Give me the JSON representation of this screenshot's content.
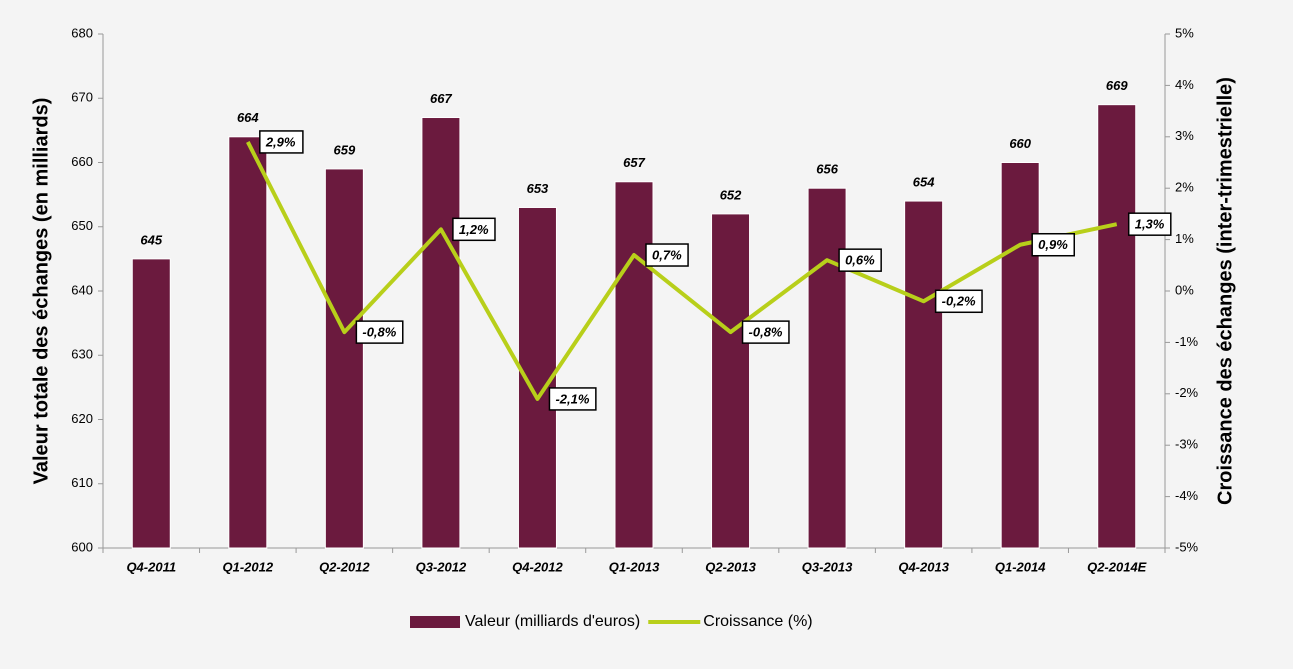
{
  "chart_data": {
    "type": "bar-line",
    "y_label": "Valeur totale des échanges (en milliards)",
    "y2_label": "Croissance des échanges (inter-trimestrielle)",
    "categories": [
      "Q4-2011",
      "Q1-2012",
      "Q2-2012",
      "Q3-2012",
      "Q4-2012",
      "Q1-2013",
      "Q2-2013",
      "Q3-2013",
      "Q4-2013",
      "Q1-2014",
      "Q2-2014E"
    ],
    "series": [
      {
        "name": "Valeur (milliards d'euros)",
        "type": "bar",
        "axis": "y",
        "color": "#6b1a3e",
        "values": [
          645,
          664,
          659,
          667,
          653,
          657,
          652,
          656,
          654,
          660,
          669
        ]
      },
      {
        "name": "Croissance (%)",
        "type": "line",
        "axis": "y2",
        "color": "#b8cf1a",
        "values": [
          null,
          2.9,
          -0.8,
          1.2,
          -2.1,
          0.7,
          -0.8,
          0.6,
          -0.2,
          0.9,
          1.3
        ],
        "value_labels": [
          null,
          "2,9%",
          "-0,8%",
          "1,2%",
          "-2,1%",
          "0,7%",
          "-0,8%",
          "0,6%",
          "-0,2%",
          "0,9%",
          "1,3%"
        ]
      }
    ],
    "ylim": [
      600,
      680
    ],
    "yticks": [
      600,
      610,
      620,
      630,
      640,
      650,
      660,
      670,
      680
    ],
    "y2lim": [
      -5,
      5
    ],
    "y2ticks": [
      {
        "value": -5,
        "label": "-5%"
      },
      {
        "value": -4,
        "label": "-4%"
      },
      {
        "value": -3,
        "label": "-3%"
      },
      {
        "value": -2,
        "label": "-2%"
      },
      {
        "value": -1,
        "label": "-1%"
      },
      {
        "value": 0,
        "label": "0%"
      },
      {
        "value": 1,
        "label": "1%"
      },
      {
        "value": 2,
        "label": "2%"
      },
      {
        "value": 3,
        "label": "3%"
      },
      {
        "value": 4,
        "label": "4%"
      },
      {
        "value": 5,
        "label": "5%"
      }
    ],
    "legend": "bottom"
  }
}
